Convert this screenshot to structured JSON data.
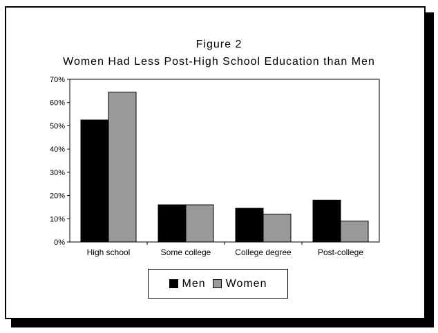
{
  "figure": {
    "label": "Figure 2",
    "title": "Women Had Less Post-High School Education than Men"
  },
  "chart_data": {
    "type": "bar",
    "title": "Women Had Less Post-High School Education than Men",
    "xlabel": "",
    "ylabel": "",
    "categories": [
      "High school",
      "Some college",
      "College degree",
      "Post-college"
    ],
    "series": [
      {
        "name": "Men",
        "values": [
          52.5,
          16,
          14.5,
          18
        ],
        "color": "#000000"
      },
      {
        "name": "Women",
        "values": [
          64.5,
          16,
          12,
          9
        ],
        "color": "#999999"
      }
    ],
    "ylim": [
      0,
      70
    ],
    "yticks": [
      0,
      10,
      20,
      30,
      40,
      50,
      60,
      70
    ],
    "ytick_labels": [
      "0%",
      "10%",
      "20%",
      "30%",
      "40%",
      "50%",
      "60%",
      "70%"
    ],
    "grid": false,
    "legend_position": "bottom"
  }
}
